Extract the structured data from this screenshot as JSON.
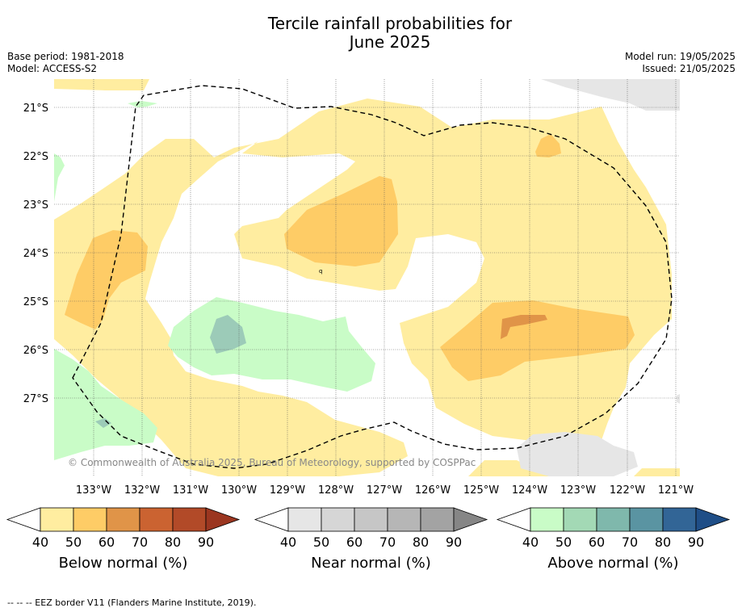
{
  "title_line1": "Tercile rainfall probabilities for",
  "title_line2": "June 2025",
  "base_period": "Base period: 1981-2018",
  "model": "Model: ACCESS-S2",
  "model_run": "Model run: 19/05/2025",
  "issued": "Issued: 21/05/2025",
  "copyright": "© Commonwealth of Australia 2025, Bureau of Meteorology, supported by COSPPac",
  "footnote": "--  --  -- EEZ border V11 (Flanders Marine Institute, 2019).",
  "lat_labels": [
    "21°S",
    "22°S",
    "23°S",
    "24°S",
    "25°S",
    "26°S",
    "27°S"
  ],
  "lon_labels": [
    "133°W",
    "132°W",
    "131°W",
    "130°W",
    "129°W",
    "128°W",
    "127°W",
    "126°W",
    "125°W",
    "124°W",
    "123°W",
    "122°W",
    "121°W"
  ],
  "colorbars": [
    {
      "title": "Below normal (%)",
      "ticks": [
        "40",
        "50",
        "60",
        "70",
        "80",
        "90"
      ],
      "colors": [
        "#ffffff",
        "#ffeda0",
        "#fecc66",
        "#e09448",
        "#cb6331",
        "#b24a28",
        "#9b3620"
      ]
    },
    {
      "title": "Near normal (%)",
      "ticks": [
        "40",
        "50",
        "60",
        "70",
        "80",
        "90"
      ],
      "colors": [
        "#ffffff",
        "#e6e6e6",
        "#d6d6d6",
        "#c6c6c6",
        "#b6b6b6",
        "#a3a3a3",
        "#868686"
      ]
    },
    {
      "title": "Above normal (%)",
      "ticks": [
        "40",
        "50",
        "60",
        "70",
        "80",
        "90"
      ],
      "colors": [
        "#ffffff",
        "#c9fcc7",
        "#a3d9b5",
        "#7fb8ac",
        "#5a94a2",
        "#326596",
        "#1f4e87"
      ]
    }
  ],
  "map_colors": {
    "below_50": "#ffeda0",
    "below_60": "#fecc66",
    "below_70": "#e09448",
    "near_50": "#e6e6e6",
    "above_50": "#c9fcc7",
    "above_60": "#a3d9b5",
    "above_70": "#9ccbb8"
  }
}
